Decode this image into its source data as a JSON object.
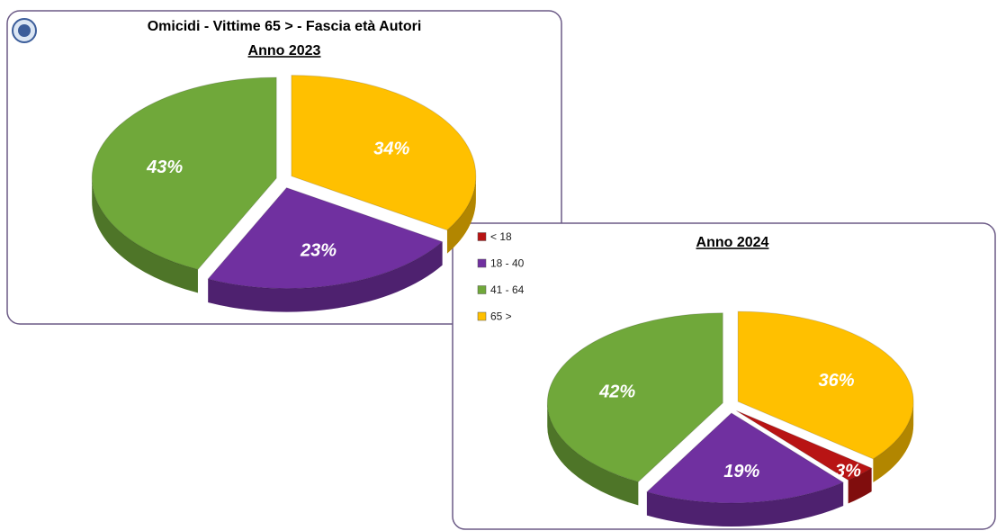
{
  "chart_data": [
    {
      "type": "pie",
      "title": "Omicidi - Vittime 65 > - Fascia età Autori",
      "subtitle": "Anno 2023",
      "values": [
        23,
        43,
        34
      ],
      "value_labels": [
        "23%",
        "43%",
        "34%"
      ],
      "colors": [
        "#7030a0",
        "#70a83a",
        "#ffc000"
      ]
    },
    {
      "type": "pie",
      "subtitle": "Anno 2024",
      "categories": [
        "< 18",
        "18 - 40",
        "41 - 64",
        "65 >"
      ],
      "values": [
        3,
        19,
        42,
        36
      ],
      "value_labels": [
        "3%",
        "19%",
        "42%",
        "36%"
      ],
      "colors": [
        "#b81414",
        "#7030a0",
        "#70a83a",
        "#ffc000"
      ],
      "legend": "left"
    }
  ]
}
